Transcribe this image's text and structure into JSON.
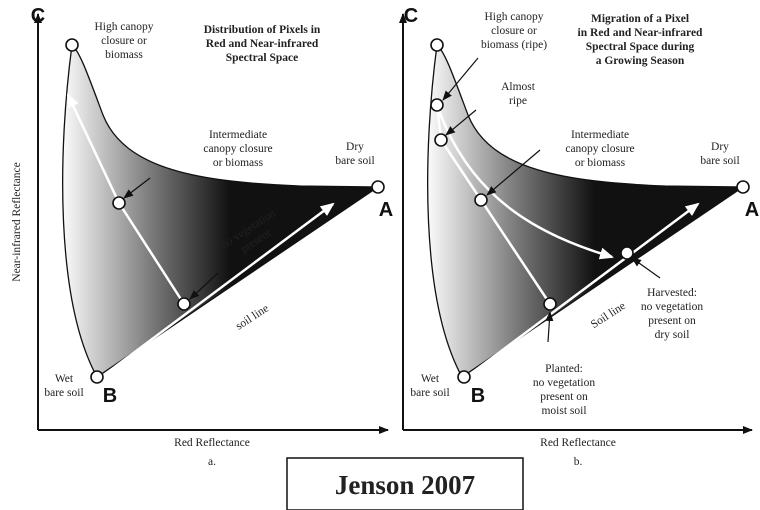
{
  "panels": [
    {
      "title": [
        "Distribution of Pixels in",
        "Red and Near-infrared",
        "Spectral Space"
      ],
      "y_axis": "Near-infrared Reflectance",
      "x_axis": "Red Reflectance",
      "caption": "a.",
      "corners": [
        "C",
        "B",
        "A"
      ],
      "notes": [
        [
          "High canopy",
          "closure or",
          "biomass"
        ],
        [
          "Intermediate",
          "canopy closure",
          "or biomass"
        ],
        [
          "Dry",
          "bare soil"
        ],
        [
          "Wet",
          "bare soil"
        ],
        [
          "no vegetation",
          "present"
        ],
        [
          "soil line"
        ]
      ]
    },
    {
      "title": [
        "Migration of a Pixel",
        "in Red and Near-infrared",
        "Spectral Space during",
        "a Growing Season"
      ],
      "x_axis": "Red Reflectance",
      "caption": "b.",
      "corners": [
        "C",
        "B",
        "A"
      ],
      "notes": [
        [
          "High canopy",
          "closure or",
          "biomass (ripe)"
        ],
        [
          "Almost",
          "ripe"
        ],
        [
          "Intermediate",
          "canopy closure",
          "or biomass"
        ],
        [
          "Dry",
          "bare soil"
        ],
        [
          "Wet",
          "bare soil"
        ],
        [
          "Harvested:",
          "no vegetation",
          "present on",
          "dry soil"
        ],
        [
          "Planted:",
          "no vegetation",
          "present on",
          "moist soil"
        ],
        [
          "Soil line"
        ]
      ]
    }
  ],
  "credit": "Jenson 2007"
}
